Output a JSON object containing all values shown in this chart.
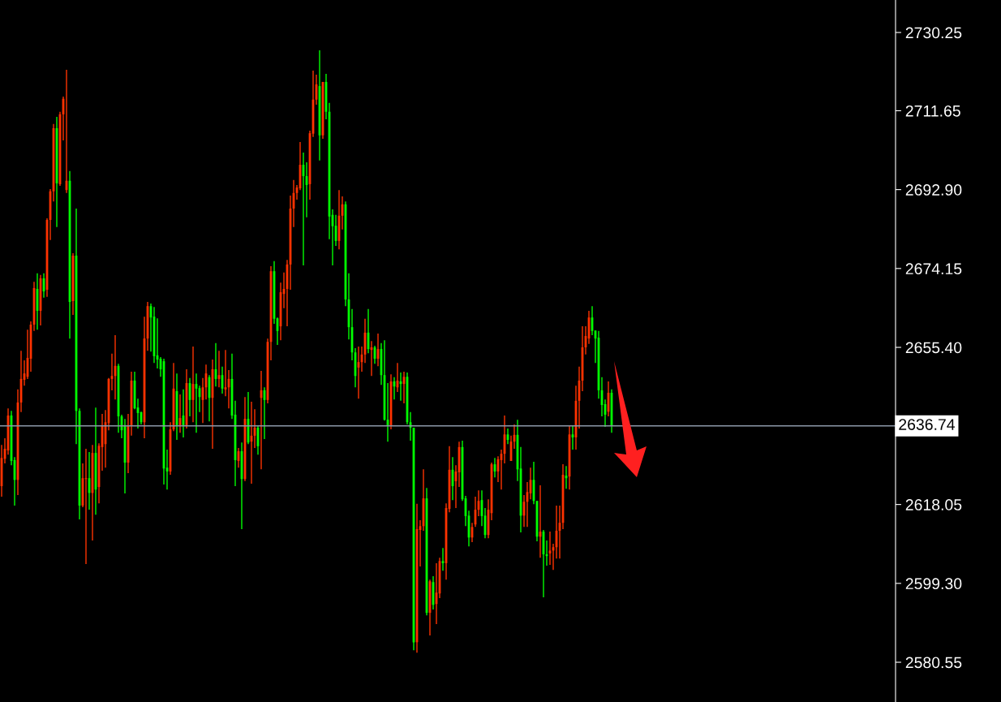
{
  "chart_data": {
    "type": "candlestick",
    "categories": [
      null,
      null,
      null,
      null,
      null,
      null,
      null,
      null,
      null,
      null,
      null,
      null,
      null,
      null,
      null,
      null,
      null,
      null,
      null,
      null,
      null,
      null,
      null,
      null,
      null,
      null,
      null,
      null,
      null,
      null,
      null,
      null,
      null,
      null,
      null,
      null,
      null,
      null,
      null,
      null,
      null,
      null,
      null,
      null,
      null,
      null,
      null,
      null,
      null,
      null,
      null,
      null,
      null,
      null,
      null,
      null,
      null,
      null,
      null,
      null,
      null,
      null,
      null,
      null,
      null,
      null,
      null,
      null,
      null,
      null,
      null,
      null,
      null,
      null,
      null,
      null,
      null,
      null,
      null,
      null,
      null,
      null,
      null,
      null,
      null,
      null,
      null,
      null,
      null,
      null,
      null,
      null,
      null,
      null,
      null,
      null,
      null,
      null,
      null,
      null,
      null,
      null,
      null,
      null,
      null,
      null,
      null,
      null,
      null,
      null,
      null,
      null,
      null,
      null,
      null,
      null,
      null,
      null,
      null,
      null,
      null,
      null,
      null,
      null,
      null,
      null,
      null,
      null,
      null,
      null,
      null,
      null,
      null,
      null,
      null,
      null,
      null,
      null,
      null,
      null,
      null,
      null,
      null,
      null,
      null,
      null,
      null,
      null,
      null,
      null,
      null,
      null,
      null,
      null,
      null,
      null,
      null,
      null,
      null,
      null,
      null,
      null,
      null,
      null,
      null,
      null,
      null,
      null,
      null,
      null,
      null,
      null,
      null,
      null,
      null,
      null,
      null,
      null,
      null,
      null,
      null,
      null,
      null,
      null,
      null,
      null,
      null,
      null,
      null,
      null,
      null,
      null,
      null,
      null,
      null,
      null,
      null,
      null,
      null,
      null,
      null,
      null,
      null,
      null,
      null,
      null,
      null,
      null,
      null,
      null,
      null,
      null,
      null,
      null,
      null,
      null,
      null,
      null,
      null,
      null,
      null,
      null,
      null,
      null,
      null,
      null,
      null,
      null,
      null,
      null,
      null,
      null,
      null,
      null,
      null,
      null,
      null,
      null,
      null,
      null,
      null,
      null,
      null,
      null,
      null,
      null,
      null,
      null,
      null,
      null,
      null,
      null,
      null,
      null,
      null,
      null,
      null,
      null,
      null,
      null,
      null,
      null,
      null,
      null,
      null,
      null,
      null,
      null,
      null,
      null,
      null,
      null,
      null,
      null,
      null,
      null
    ],
    "ohlc": [
      [
        2622.4,
        2632.2,
        2619.9,
        2629.1
      ],
      [
        2628.9,
        2633.8,
        2627.8,
        2631.3
      ],
      [
        2630.9,
        2640.9,
        2629.9,
        2639.2
      ],
      [
        2639.2,
        2640.3,
        2627.4,
        2628.4
      ],
      [
        2628.6,
        2629.3,
        2617.8,
        2623.9
      ],
      [
        2623.9,
        2645.4,
        2620.3,
        2642.3
      ],
      [
        2642.3,
        2654.6,
        2640.0,
        2647.9
      ],
      [
        2647.7,
        2652.3,
        2646.3,
        2649.2
      ],
      [
        2648.4,
        2659.6,
        2647.9,
        2652.9
      ],
      [
        2652.7,
        2661.6,
        2649.6,
        2660.8
      ],
      [
        2660.8,
        2671.0,
        2659.3,
        2669.5
      ],
      [
        2669.3,
        2673.0,
        2659.6,
        2664.1
      ],
      [
        2664.1,
        2672.6,
        2660.6,
        2671.8
      ],
      [
        2671.8,
        2673.0,
        2667.2,
        2668.7
      ],
      [
        2669.1,
        2686.1,
        2667.4,
        2685.7
      ],
      [
        2685.7,
        2693.0,
        2680.9,
        2692.5
      ],
      [
        2692.5,
        2708.5,
        2690.1,
        2707.5
      ],
      [
        2707.5,
        2710.2,
        2684.0,
        2694.4
      ],
      [
        2694.2,
        2711.4,
        2693.8,
        2710.8
      ],
      [
        2710.8,
        2715.0,
        2704.6,
        2714.5
      ],
      [
        2692.8,
        2721.4,
        2692.1,
        2695.0
      ],
      [
        2695.0,
        2697.3,
        2657.5,
        2666.2
      ],
      [
        2666.4,
        2677.8,
        2663.1,
        2677.2
      ],
      [
        2677.2,
        2688.4,
        2632.4,
        2640.3
      ],
      [
        2640.3,
        2640.9,
        2614.5,
        2617.8
      ],
      [
        2617.8,
        2627.8,
        2617.4,
        2624.3
      ],
      [
        2624.1,
        2631.3,
        2603.9,
        2624.3
      ],
      [
        2624.3,
        2630.5,
        2616.8,
        2620.8
      ],
      [
        2620.8,
        2632.2,
        2609.5,
        2630.3
      ],
      [
        2630.3,
        2641.1,
        2615.6,
        2621.6
      ],
      [
        2622.2,
        2632.6,
        2618.3,
        2632.0
      ],
      [
        2631.7,
        2639.6,
        2626.1,
        2636.9
      ],
      [
        2632.4,
        2640.5,
        2626.8,
        2637.6
      ],
      [
        2637.4,
        2648.1,
        2635.7,
        2647.9
      ],
      [
        2647.9,
        2653.9,
        2645.2,
        2648.6
      ],
      [
        2648.6,
        2658.3,
        2643.0,
        2651.0
      ],
      [
        2651.0,
        2651.5,
        2635.1,
        2639.0
      ],
      [
        2639.0,
        2639.4,
        2633.8,
        2635.7
      ],
      [
        2636.9,
        2638.4,
        2620.7,
        2628.0
      ],
      [
        2628.0,
        2639.6,
        2625.5,
        2636.9
      ],
      [
        2636.9,
        2649.6,
        2634.4,
        2647.5
      ],
      [
        2647.5,
        2649.6,
        2640.7,
        2640.9
      ],
      [
        2641.1,
        2643.2,
        2636.1,
        2639.8
      ],
      [
        2640.0,
        2640.1,
        2637.1,
        2637.6
      ],
      [
        2637.6,
        2662.7,
        2633.8,
        2657.5
      ],
      [
        2657.5,
        2666.2,
        2654.6,
        2665.2
      ],
      [
        2665.2,
        2665.8,
        2654.4,
        2662.5
      ],
      [
        2662.7,
        2665.0,
        2651.7,
        2653.3
      ],
      [
        2653.5,
        2662.3,
        2650.4,
        2652.5
      ],
      [
        2652.7,
        2653.1,
        2648.4,
        2650.2
      ],
      [
        2652.1,
        2652.7,
        2622.8,
        2626.6
      ],
      [
        2626.8,
        2631.1,
        2621.6,
        2625.9
      ],
      [
        2625.9,
        2637.6,
        2625.1,
        2635.9
      ],
      [
        2635.9,
        2651.7,
        2635.5,
        2645.6
      ],
      [
        2645.0,
        2649.2,
        2633.4,
        2636.9
      ],
      [
        2636.9,
        2644.2,
        2635.1,
        2638.6
      ],
      [
        2639.2,
        2645.4,
        2634.0,
        2636.9
      ],
      [
        2636.9,
        2650.2,
        2636.1,
        2646.9
      ],
      [
        2646.9,
        2648.1,
        2639.0,
        2642.9
      ],
      [
        2642.9,
        2655.6,
        2637.6,
        2646.7
      ],
      [
        2646.7,
        2649.2,
        2635.1,
        2645.6
      ],
      [
        2645.7,
        2646.3,
        2640.0,
        2643.6
      ],
      [
        2642.9,
        2648.1,
        2637.4,
        2645.9
      ],
      [
        2645.9,
        2651.3,
        2643.0,
        2649.2
      ],
      [
        2648.3,
        2648.8,
        2637.8,
        2643.4
      ],
      [
        2643.4,
        2652.5,
        2631.3,
        2650.2
      ],
      [
        2650.2,
        2656.4,
        2646.1,
        2647.9
      ],
      [
        2647.9,
        2654.6,
        2645.9,
        2648.8
      ],
      [
        2648.8,
        2650.8,
        2644.4,
        2645.6
      ],
      [
        2645.4,
        2654.8,
        2643.8,
        2645.9
      ],
      [
        2645.9,
        2650.0,
        2640.9,
        2647.9
      ],
      [
        2647.9,
        2653.9,
        2638.4,
        2639.2
      ],
      [
        2639.4,
        2642.7,
        2622.4,
        2628.6
      ],
      [
        2628.4,
        2631.5,
        2626.8,
        2630.7
      ],
      [
        2630.7,
        2632.8,
        2612.2,
        2624.1
      ],
      [
        2624.1,
        2643.6,
        2623.6,
        2638.4
      ],
      [
        2638.4,
        2644.8,
        2632.4,
        2632.8
      ],
      [
        2633.0,
        2642.5,
        2623.0,
        2634.4
      ],
      [
        2634.4,
        2640.7,
        2631.5,
        2636.3
      ],
      [
        2636.3,
        2636.7,
        2629.9,
        2631.9
      ],
      [
        2643.4,
        2649.8,
        2626.4,
        2645.2
      ],
      [
        2645.2,
        2645.9,
        2633.6,
        2642.9
      ],
      [
        2642.9,
        2657.5,
        2642.1,
        2656.7
      ],
      [
        2656.7,
        2674.7,
        2652.3,
        2673.5
      ],
      [
        2673.5,
        2675.9,
        2661.0,
        2662.2
      ],
      [
        2662.3,
        2662.5,
        2656.0,
        2659.3
      ],
      [
        2660.4,
        2670.8,
        2657.1,
        2668.5
      ],
      [
        2668.1,
        2673.2,
        2664.7,
        2669.3
      ],
      [
        2669.3,
        2676.2,
        2660.4,
        2675.1
      ],
      [
        2675.1,
        2691.5,
        2669.1,
        2688.4
      ],
      [
        2688.4,
        2695.2,
        2684.0,
        2692.1
      ],
      [
        2692.1,
        2694.0,
        2690.5,
        2693.4
      ],
      [
        2693.2,
        2704.2,
        2692.8,
        2698.8
      ],
      [
        2698.8,
        2701.7,
        2674.9,
        2696.1
      ],
      [
        2696.1,
        2699.4,
        2686.3,
        2694.0
      ],
      [
        2694.2,
        2706.9,
        2690.5,
        2706.3
      ],
      [
        2706.2,
        2721.2,
        2705.4,
        2714.3
      ],
      [
        2714.3,
        2720.2,
        2713.1,
        2717.9
      ],
      [
        2717.5,
        2726.0,
        2699.8,
        2705.8
      ],
      [
        2705.8,
        2718.5,
        2705.0,
        2718.5
      ],
      [
        2718.5,
        2720.4,
        2709.6,
        2711.4
      ],
      [
        2711.4,
        2713.5,
        2681.1,
        2686.5
      ],
      [
        2686.9,
        2688.2,
        2674.9,
        2684.2
      ],
      [
        2684.3,
        2686.9,
        2679.5,
        2680.7
      ],
      [
        2680.7,
        2692.8,
        2678.7,
        2686.7
      ],
      [
        2686.7,
        2691.3,
        2683.4,
        2689.4
      ],
      [
        2689.4,
        2690.1,
        2665.2,
        2666.8
      ],
      [
        2666.8,
        2673.0,
        2657.3,
        2660.2
      ],
      [
        2660.2,
        2664.5,
        2652.3,
        2654.2
      ],
      [
        2654.2,
        2655.2,
        2645.9,
        2648.6
      ],
      [
        2650.6,
        2655.6,
        2643.2,
        2651.9
      ],
      [
        2651.9,
        2655.6,
        2649.6,
        2653.7
      ],
      [
        2653.7,
        2662.2,
        2651.7,
        2658.9
      ],
      [
        2658.9,
        2664.5,
        2654.0,
        2655.0
      ],
      [
        2654.8,
        2656.9,
        2648.6,
        2655.4
      ],
      [
        2655.4,
        2655.8,
        2651.5,
        2652.7
      ],
      [
        2652.7,
        2658.7,
        2650.9,
        2655.0
      ],
      [
        2655.0,
        2656.4,
        2646.5,
        2648.8
      ],
      [
        2648.8,
        2657.1,
        2638.0,
        2638.2
      ],
      [
        2638.2,
        2646.9,
        2633.0,
        2636.7
      ],
      [
        2636.7,
        2649.0,
        2635.9,
        2647.3
      ],
      [
        2647.3,
        2648.3,
        2643.0,
        2646.1
      ],
      [
        2645.9,
        2651.7,
        2644.8,
        2647.5
      ],
      [
        2647.3,
        2649.4,
        2642.7,
        2646.7
      ],
      [
        2646.7,
        2649.6,
        2642.1,
        2648.4
      ],
      [
        2648.4,
        2649.4,
        2637.1,
        2637.6
      ],
      [
        2637.6,
        2640.0,
        2633.2,
        2636.3
      ],
      [
        2636.3,
        2636.3,
        2583.4,
        2585.3
      ],
      [
        2585.3,
        2618.2,
        2582.8,
        2612.2
      ],
      [
        2612.0,
        2614.3,
        2603.3,
        2612.9
      ],
      [
        2612.9,
        2626.4,
        2611.8,
        2619.5
      ],
      [
        2619.5,
        2622.0,
        2591.7,
        2592.3
      ],
      [
        2592.3,
        2600.2,
        2586.9,
        2599.8
      ],
      [
        2599.6,
        2601.0,
        2593.1,
        2594.2
      ],
      [
        2594.4,
        2604.1,
        2589.6,
        2597.1
      ],
      [
        2596.9,
        2605.4,
        2595.8,
        2604.6
      ],
      [
        2604.6,
        2607.7,
        2602.3,
        2604.1
      ],
      [
        2604.1,
        2618.3,
        2600.2,
        2617.2
      ],
      [
        2617.0,
        2631.9,
        2616.2,
        2626.3
      ],
      [
        2626.3,
        2629.3,
        2619.1,
        2622.4
      ],
      [
        2623.6,
        2627.4,
        2617.2,
        2625.9
      ],
      [
        2625.7,
        2633.0,
        2622.2,
        2631.7
      ],
      [
        2631.7,
        2633.2,
        2618.9,
        2619.3
      ],
      [
        2619.5,
        2620.1,
        2612.9,
        2615.3
      ],
      [
        2615.4,
        2616.6,
        2608.1,
        2610.2
      ],
      [
        2610.2,
        2613.7,
        2609.1,
        2612.7
      ],
      [
        2613.3,
        2619.9,
        2612.7,
        2616.8
      ],
      [
        2616.8,
        2621.4,
        2615.3,
        2618.9
      ],
      [
        2619.1,
        2621.4,
        2612.9,
        2615.3
      ],
      [
        2615.4,
        2617.2,
        2610.0,
        2610.8
      ],
      [
        2610.8,
        2619.3,
        2610.0,
        2616.8
      ],
      [
        2616.0,
        2628.0,
        2614.3,
        2627.6
      ],
      [
        2627.6,
        2629.1,
        2624.5,
        2625.9
      ],
      [
        2625.9,
        2629.5,
        2623.4,
        2628.8
      ],
      [
        2628.6,
        2631.1,
        2621.6,
        2630.1
      ],
      [
        2630.1,
        2639.2,
        2627.8,
        2634.7
      ],
      [
        2634.7,
        2636.1,
        2632.4,
        2633.4
      ],
      [
        2628.4,
        2634.4,
        2628.4,
        2633.0
      ],
      [
        2633.0,
        2637.1,
        2631.3,
        2634.6
      ],
      [
        2634.6,
        2638.2,
        2623.6,
        2626.4
      ],
      [
        2626.6,
        2631.7,
        2611.4,
        2615.4
      ],
      [
        2615.4,
        2620.3,
        2612.7,
        2618.7
      ],
      [
        2618.7,
        2623.4,
        2612.7,
        2621.0
      ],
      [
        2620.7,
        2626.8,
        2619.3,
        2623.9
      ],
      [
        2623.9,
        2628.2,
        2618.1,
        2618.9
      ],
      [
        2618.9,
        2618.9,
        2609.3,
        2610.4
      ],
      [
        2610.4,
        2622.6,
        2605.4,
        2611.6
      ],
      [
        2611.6,
        2612.0,
        2596.0,
        2606.2
      ],
      [
        2606.2,
        2609.5,
        2603.5,
        2605.8
      ],
      [
        2606.4,
        2611.6,
        2603.7,
        2607.1
      ],
      [
        2607.1,
        2608.7,
        2602.5,
        2607.9
      ],
      [
        2607.9,
        2617.8,
        2605.2,
        2611.8
      ],
      [
        2611.8,
        2617.8,
        2605.2,
        2613.7
      ],
      [
        2613.7,
        2627.6,
        2612.2,
        2625.1
      ],
      [
        2624.9,
        2627.2,
        2621.8,
        2624.3
      ],
      [
        2624.7,
        2636.7,
        2621.6,
        2634.7
      ],
      [
        2634.7,
        2636.7,
        2631.1,
        2634.0
      ],
      [
        2634.0,
        2646.3,
        2631.1,
        2642.7
      ],
      [
        2642.7,
        2650.8,
        2636.1,
        2647.5
      ],
      [
        2647.5,
        2660.4,
        2645.0,
        2655.4
      ],
      [
        2655.4,
        2660.4,
        2653.7,
        2658.1
      ],
      [
        2657.5,
        2664.1,
        2656.2,
        2662.5
      ],
      [
        2662.5,
        2665.2,
        2658.3,
        2659.3
      ],
      [
        2659.4,
        2659.4,
        2651.7,
        2657.5
      ],
      [
        2657.7,
        2659.3,
        2643.2,
        2645.2
      ],
      [
        2645.2,
        2648.3,
        2639.0,
        2641.7
      ],
      [
        2641.9,
        2643.0,
        2636.5,
        2639.4
      ],
      [
        2640.1,
        2647.3,
        2639.0,
        2644.6
      ],
      [
        2644.6,
        2645.4,
        2635.1,
        2636.74
      ],
      null,
      null,
      null,
      null,
      null,
      null,
      null,
      null,
      null,
      null,
      null,
      null,
      null,
      null,
      null,
      null,
      null,
      null,
      null,
      null,
      null,
      null,
      null,
      null,
      null,
      null,
      null,
      null,
      null,
      null,
      null,
      null,
      null,
      null,
      null,
      null,
      null,
      null,
      null,
      null,
      null,
      null,
      null,
      null,
      null,
      null,
      null,
      null,
      null,
      null,
      null,
      null,
      null,
      null,
      null,
      null,
      null,
      null,
      null,
      null,
      null,
      null,
      null,
      null,
      null,
      null,
      null,
      null,
      null,
      null,
      null,
      null,
      null,
      null,
      null,
      null,
      null,
      null,
      null,
      null,
      null,
      null,
      null,
      null,
      null,
      null,
      null
    ],
    "colors": [
      "#ff3300",
      "#ff3300",
      "#ff3300",
      "#00ff00",
      "#00ff00",
      "#ff3300",
      "#ff3300",
      "#ff3300",
      "#ff3300",
      "#ff3300",
      "#ff3300",
      "#00ff00",
      "#ff3300",
      "#00ff00",
      "#ff3300",
      "#ff3300",
      "#ff3300",
      "#00ff00",
      "#ff3300",
      "#ff3300",
      "#ff3300",
      "#00ff00",
      "#ff3300",
      "#00ff00",
      "#00ff00",
      "#ff3300",
      "#ff3300",
      "#00ff00",
      "#ff3300",
      "#00ff00",
      "#ff3300",
      "#ff3300",
      "#ff3300",
      "#ff3300",
      "#ff3300",
      "#ff3300",
      "#00ff00",
      "#00ff00",
      "#00ff00",
      "#ff3300",
      "#ff3300",
      "#00ff00",
      "#00ff00",
      "#00ff00",
      "#ff3300",
      "#ff3300",
      "#00ff00",
      "#00ff00",
      "#00ff00",
      "#00ff00",
      "#00ff00",
      "#00ff00",
      "#ff3300",
      "#ff3300",
      "#00ff00",
      "#ff3300",
      "#00ff00",
      "#ff3300",
      "#00ff00",
      "#ff3300",
      "#00ff00",
      "#00ff00",
      "#ff3300",
      "#ff3300",
      "#00ff00",
      "#ff3300",
      "#00ff00",
      "#ff3300",
      "#00ff00",
      "#ff3300",
      "#ff3300",
      "#00ff00",
      "#00ff00",
      "#ff3300",
      "#00ff00",
      "#ff3300",
      "#00ff00",
      "#ff3300",
      "#ff3300",
      "#00ff00",
      "#ff3300",
      "#00ff00",
      "#ff3300",
      "#ff3300",
      "#00ff00",
      "#00ff00",
      "#ff3300",
      "#ff3300",
      "#ff3300",
      "#ff3300",
      "#ff3300",
      "#ff3300",
      "#ff3300",
      "#00ff00",
      "#00ff00",
      "#ff3300",
      "#ff3300",
      "#ff3300",
      "#00ff00",
      "#ff3300",
      "#00ff00",
      "#00ff00",
      "#00ff00",
      "#00ff00",
      "#ff3300",
      "#ff3300",
      "#00ff00",
      "#00ff00",
      "#00ff00",
      "#00ff00",
      "#ff3300",
      "#ff3300",
      "#ff3300",
      "#00ff00",
      "#ff3300",
      "#00ff00",
      "#ff3300",
      "#00ff00",
      "#00ff00",
      "#00ff00",
      "#ff3300",
      "#00ff00",
      "#ff3300",
      "#00ff00",
      "#ff3300",
      "#00ff00",
      "#00ff00",
      "#00ff00",
      "#ff3300",
      "#ff3300",
      "#ff3300",
      "#00ff00",
      "#ff3300",
      "#00ff00",
      "#ff3300",
      "#ff3300",
      "#00ff00",
      "#ff3300",
      "#ff3300",
      "#00ff00",
      "#ff3300",
      "#ff3300",
      "#00ff00",
      "#00ff00",
      "#00ff00",
      "#ff3300",
      "#ff3300",
      "#ff3300",
      "#00ff00",
      "#00ff00",
      "#ff3300",
      "#ff3300",
      "#00ff00",
      "#ff3300",
      "#ff3300",
      "#ff3300",
      "#00ff00",
      "#ff3300",
      "#ff3300",
      "#00ff00",
      "#00ff00",
      "#ff3300",
      "#ff3300",
      "#ff3300",
      "#00ff00",
      "#00ff00",
      "#ff3300",
      "#00ff00",
      "#00ff00",
      "#ff3300",
      "#ff3300",
      "#ff3300",
      "#ff3300",
      "#ff3300",
      "#00ff00",
      "#ff3300",
      "#00ff00",
      "#ff3300",
      "#ff3300",
      "#ff3300",
      "#ff3300",
      "#ff3300",
      "#00ff00",
      "#00ff00",
      "#00ff00",
      "#00ff00",
      "#00ff00",
      "#ff3300",
      "#00ff00",
      null,
      null,
      null,
      null,
      null,
      null,
      null,
      null,
      null,
      null,
      null,
      null,
      null,
      null,
      null,
      null,
      null,
      null,
      null,
      null,
      null,
      null,
      null,
      null,
      null,
      null,
      null,
      null,
      null,
      null,
      null,
      null,
      null,
      null,
      null,
      null,
      null,
      null,
      null,
      null,
      null,
      null,
      null,
      null,
      null,
      null,
      null,
      null,
      null,
      null,
      null,
      null,
      null,
      null,
      null,
      null,
      null,
      null,
      null,
      null,
      null,
      null,
      null,
      null,
      null,
      null,
      null,
      null,
      null,
      null,
      null,
      null,
      null,
      null,
      null,
      null,
      null,
      null,
      null,
      null,
      null,
      null,
      null,
      null,
      null,
      null,
      null
    ],
    "ylim": [
      2571.1,
      2737.97
    ],
    "yticks": [
      2580.55,
      {
        "value": 2599.3,
        "label": "2599.30"
      },
      2618.05,
      {
        "value": 2655.4,
        "label": "2655.40"
      },
      2674.15,
      {
        "value": 2692.9,
        "label": "2692.90"
      },
      2711.65,
      2730.25
    ],
    "tick_labels": "y",
    "ref_lines": [
      {
        "axis": "y",
        "value": 2636.74,
        "label": "2636.74",
        "color": "#8c97a8"
      }
    ]
  }
}
